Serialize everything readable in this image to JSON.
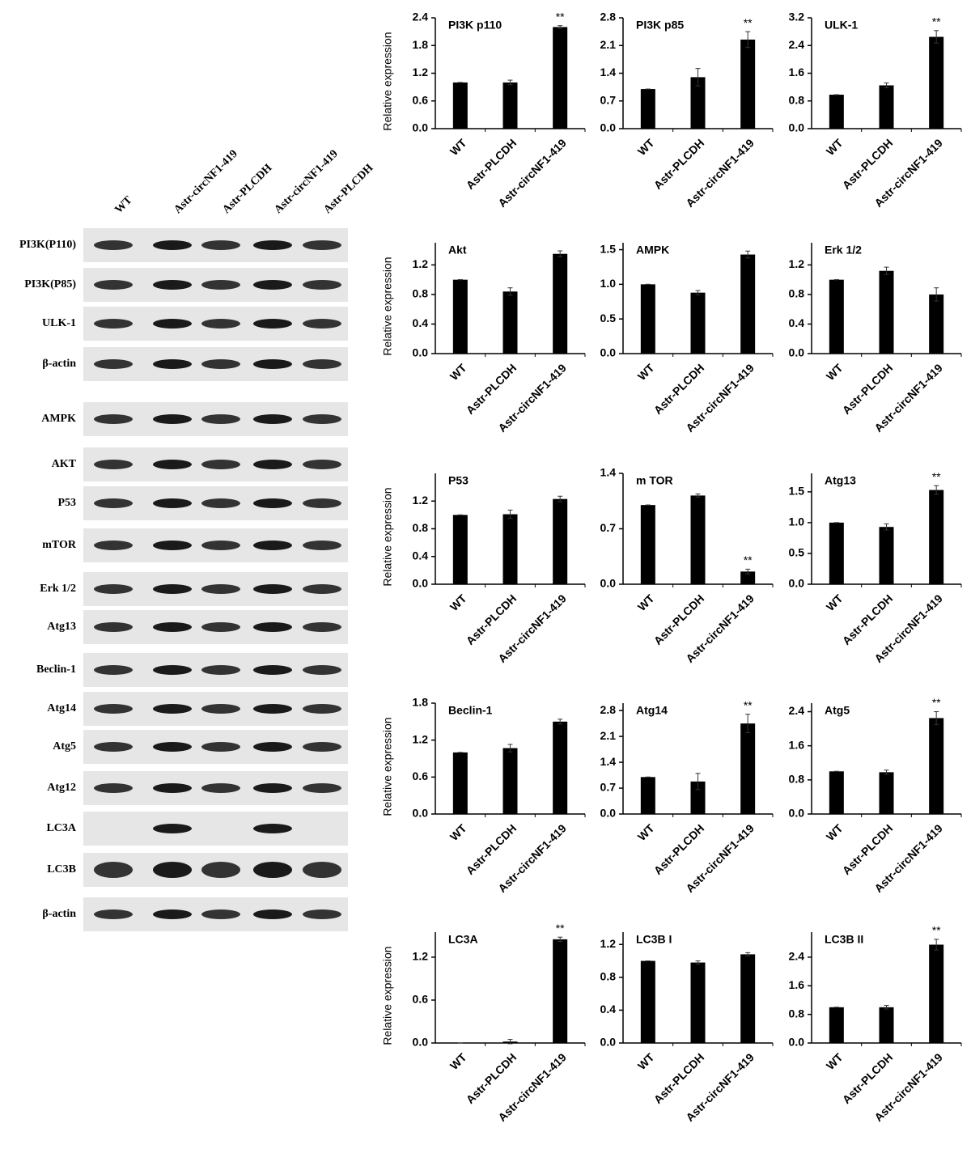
{
  "blot": {
    "lanes": [
      "WT",
      "Astr-circNF1-419",
      "Astr-PLCDH",
      "Astr-circNF1-419",
      "Astr-PLCDH"
    ],
    "rows": [
      "PI3K(P110)",
      "PI3K(P85)",
      "ULK-1",
      "β-actin",
      "AMPK",
      "AKT",
      "P53",
      "mTOR",
      "Erk 1/2",
      "Atg13",
      "Beclin-1",
      "Atg14",
      "Atg5",
      "Atg12",
      "LC3A",
      "LC3B",
      "β-actin"
    ]
  },
  "chart_data": [
    {
      "type": "bar",
      "title": "PI3K p110",
      "ylabel": "Relative expression",
      "categories": [
        "WT",
        "Astr-PLCDH",
        "Astr-circNF1-419"
      ],
      "values": [
        1.0,
        1.0,
        2.2
      ],
      "errors": [
        0,
        0.05,
        0.03
      ],
      "significance": [
        null,
        null,
        "**"
      ],
      "color": "#000000",
      "ylim": [
        0,
        2.4
      ],
      "yticks": [
        {
          "value": 0,
          "label": "0.0"
        },
        0.6,
        1.2,
        1.8,
        2.4
      ]
    },
    {
      "type": "bar",
      "title": "PI3K p85",
      "categories": [
        "WT",
        "Astr-PLCDH",
        "Astr-circNF1-419"
      ],
      "values": [
        1.0,
        1.3,
        2.25
      ],
      "errors": [
        0,
        0.22,
        0.2
      ],
      "significance": [
        null,
        null,
        "**"
      ],
      "color": "#000000",
      "ylim": [
        0,
        2.8
      ],
      "yticks": [
        {
          "value": 0,
          "label": "0.0"
        },
        0.7,
        1.4,
        2.1,
        2.8
      ]
    },
    {
      "type": "bar",
      "title": "ULK-1",
      "categories": [
        "WT",
        "Astr-PLCDH",
        "Astr-circNF1-419"
      ],
      "values": [
        0.98,
        1.25,
        2.65
      ],
      "errors": [
        0,
        0.07,
        0.18
      ],
      "significance": [
        null,
        null,
        "**"
      ],
      "color": "#000000",
      "ylim": [
        0,
        3.2
      ],
      "yticks": [
        {
          "value": 0,
          "label": "0.0"
        },
        0.8,
        1.6,
        2.4,
        3.2
      ]
    },
    {
      "type": "bar",
      "title": "Akt",
      "ylabel": "Relative expression",
      "categories": [
        "WT",
        "Astr-PLCDH",
        "Astr-circNF1-419"
      ],
      "values": [
        1.0,
        0.84,
        1.35
      ],
      "errors": [
        0,
        0.05,
        0.04
      ],
      "color": "#000000",
      "ylim": [
        0,
        1.5
      ],
      "yticks": [
        {
          "value": 0,
          "label": "0.0"
        },
        0.4,
        0.8,
        1.2
      ]
    },
    {
      "type": "bar",
      "title": "AMPK",
      "categories": [
        "WT",
        "Astr-PLCDH",
        "Astr-circNF1-419"
      ],
      "values": [
        1.0,
        0.88,
        1.43
      ],
      "errors": [
        0,
        0.03,
        0.05
      ],
      "color": "#000000",
      "ylim": [
        0,
        1.6
      ],
      "yticks": [
        {
          "value": 0,
          "label": "0.0"
        },
        0.5,
        {
          "value": 1,
          "label": "1.0"
        },
        1.5
      ]
    },
    {
      "type": "bar",
      "title": "Erk 1/2",
      "categories": [
        "WT",
        "Astr-PLCDH",
        "Astr-circNF1-419"
      ],
      "values": [
        1.0,
        1.12,
        0.8
      ],
      "errors": [
        0,
        0.05,
        0.09
      ],
      "color": "#000000",
      "ylim": [
        0,
        1.5
      ],
      "yticks": [
        {
          "value": 0,
          "label": "0.0"
        },
        0.4,
        0.8,
        1.2
      ]
    },
    {
      "type": "bar",
      "title": "P53",
      "ylabel": "Relative expression",
      "categories": [
        "WT",
        "Astr-PLCDH",
        "Astr-circNF1-419"
      ],
      "values": [
        1.0,
        1.01,
        1.23
      ],
      "errors": [
        0,
        0.06,
        0.04
      ],
      "color": "#000000",
      "ylim": [
        0,
        1.6
      ],
      "yticks": [
        {
          "value": 0,
          "label": "0.0"
        },
        0.4,
        0.8,
        1.2
      ]
    },
    {
      "type": "bar",
      "title": "m TOR",
      "categories": [
        "WT",
        "Astr-PLCDH",
        "Astr-circNF1-419"
      ],
      "values": [
        1.0,
        1.12,
        0.16
      ],
      "errors": [
        0,
        0.02,
        0.03
      ],
      "significance": [
        null,
        null,
        "**"
      ],
      "color": "#000000",
      "ylim": [
        0,
        1.4
      ],
      "yticks": [
        {
          "value": 0,
          "label": "0.0"
        },
        0.7,
        1.4
      ]
    },
    {
      "type": "bar",
      "title": "Atg13",
      "categories": [
        "WT",
        "Astr-PLCDH",
        "Astr-circNF1-419"
      ],
      "values": [
        1.0,
        0.93,
        1.53
      ],
      "errors": [
        0,
        0.05,
        0.07
      ],
      "significance": [
        null,
        null,
        "**"
      ],
      "color": "#000000",
      "ylim": [
        0,
        1.8
      ],
      "yticks": [
        {
          "value": 0,
          "label": "0.0"
        },
        0.5,
        {
          "value": 1,
          "label": "1.0"
        },
        1.5
      ]
    },
    {
      "type": "bar",
      "title": "Beclin-1",
      "ylabel": "Relative expression",
      "categories": [
        "WT",
        "Astr-PLCDH",
        "Astr-circNF1-419"
      ],
      "values": [
        1.0,
        1.07,
        1.5
      ],
      "errors": [
        0,
        0.06,
        0.04
      ],
      "color": "#000000",
      "ylim": [
        0,
        1.8
      ],
      "yticks": [
        {
          "value": 0,
          "label": "0.0"
        },
        0.6,
        1.2,
        1.8
      ]
    },
    {
      "type": "bar",
      "title": "Atg14",
      "categories": [
        "WT",
        "Astr-PLCDH",
        "Astr-circNF1-419"
      ],
      "values": [
        1.0,
        0.88,
        2.45
      ],
      "errors": [
        0,
        0.22,
        0.25
      ],
      "significance": [
        null,
        null,
        "**"
      ],
      "color": "#000000",
      "ylim": [
        0,
        3.0
      ],
      "yticks": [
        {
          "value": 0,
          "label": "0.0"
        },
        0.7,
        1.4,
        2.1,
        2.8
      ]
    },
    {
      "type": "bar",
      "title": "Atg5",
      "categories": [
        "WT",
        "Astr-PLCDH",
        "Astr-circNF1-419"
      ],
      "values": [
        1.0,
        0.98,
        2.25
      ],
      "errors": [
        0,
        0.05,
        0.15
      ],
      "significance": [
        null,
        null,
        "**"
      ],
      "color": "#000000",
      "ylim": [
        0,
        2.6
      ],
      "yticks": [
        {
          "value": 0,
          "label": "0.0"
        },
        0.8,
        1.6,
        2.4
      ]
    },
    {
      "type": "bar",
      "title": "LC3A",
      "ylabel": "Relative expression",
      "categories": [
        "WT",
        "Astr-PLCDH",
        "Astr-circNF1-419"
      ],
      "values": [
        0,
        0.02,
        1.45
      ],
      "errors": [
        0,
        0.03,
        0.03
      ],
      "significance": [
        null,
        null,
        "**"
      ],
      "color": "#000000",
      "ylim": [
        0,
        1.55
      ],
      "yticks": [
        {
          "value": 0,
          "label": "0.0"
        },
        0.6,
        1.2
      ]
    },
    {
      "type": "bar",
      "title": "LC3B I",
      "categories": [
        "WT",
        "Astr-PLCDH",
        "Astr-circNF1-419"
      ],
      "values": [
        1.0,
        0.98,
        1.08
      ],
      "errors": [
        0,
        0.02,
        0.02
      ],
      "color": "#000000",
      "ylim": [
        0,
        1.35
      ],
      "yticks": [
        {
          "value": 0,
          "label": "0.0"
        },
        0.4,
        0.8,
        1.2
      ]
    },
    {
      "type": "bar",
      "title": "LC3B II",
      "categories": [
        "WT",
        "Astr-PLCDH",
        "Astr-circNF1-419"
      ],
      "values": [
        1.0,
        1.0,
        2.75
      ],
      "errors": [
        0,
        0.05,
        0.15
      ],
      "significance": [
        null,
        null,
        "**"
      ],
      "color": "#000000",
      "ylim": [
        0,
        3.1
      ],
      "yticks": [
        {
          "value": 0,
          "label": "0.0"
        },
        0.8,
        1.6,
        2.4
      ]
    }
  ]
}
